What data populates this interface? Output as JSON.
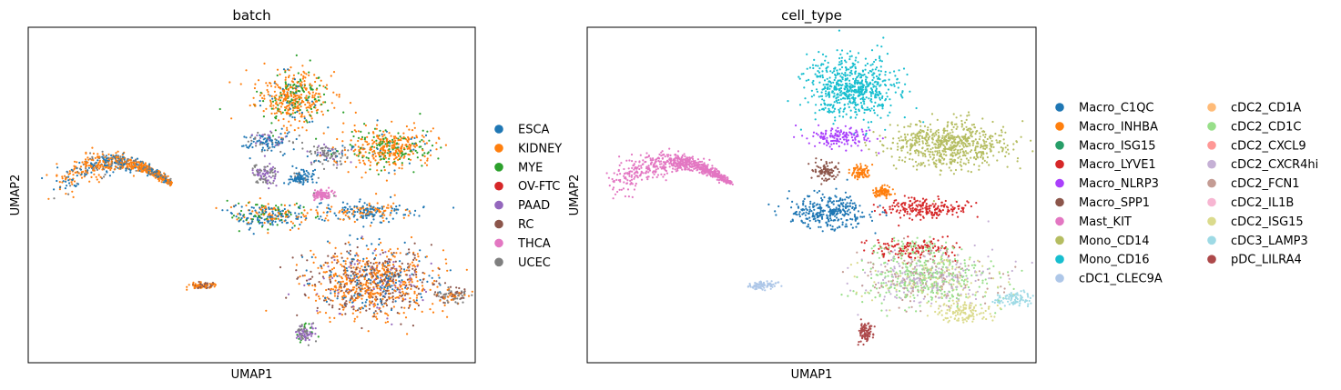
{
  "chart_data": [
    {
      "type": "scatter",
      "title": "batch",
      "xlabel": "UMAP1",
      "ylabel": "UMAP2",
      "xlim": [
        0,
        100
      ],
      "ylim": [
        0,
        100
      ],
      "grid": false,
      "legend_placement": "right",
      "series": [
        {
          "name": "ESCA",
          "color": "#1f77b4"
        },
        {
          "name": "KIDNEY",
          "color": "#ff7f0e"
        },
        {
          "name": "MYE",
          "color": "#2ca02c"
        },
        {
          "name": "OV-FTC",
          "color": "#d62728"
        },
        {
          "name": "PAAD",
          "color": "#9467bd"
        },
        {
          "name": "RC",
          "color": "#8c564b"
        },
        {
          "name": "THCA",
          "color": "#e377c2"
        },
        {
          "name": "UCEC",
          "color": "#7f7f7f"
        }
      ],
      "clusters": [
        {
          "x": 59,
          "y": 79,
          "rx": 8,
          "ry": 8,
          "mix": [
            [
              1,
              0.65
            ],
            [
              2,
              0.25
            ],
            [
              0,
              0.1
            ]
          ]
        },
        {
          "x": 53,
          "y": 66,
          "rx": 6,
          "ry": 3,
          "mix": [
            [
              0,
              0.6
            ],
            [
              7,
              0.25
            ],
            [
              4,
              0.15
            ]
          ]
        },
        {
          "x": 67,
          "y": 62,
          "rx": 5,
          "ry": 3,
          "mix": [
            [
              7,
              0.7
            ],
            [
              0,
              0.15
            ],
            [
              4,
              0.15
            ]
          ]
        },
        {
          "x": 81,
          "y": 64,
          "rx": 10,
          "ry": 6,
          "mix": [
            [
              1,
              0.65
            ],
            [
              2,
              0.3
            ],
            [
              0,
              0.05
            ]
          ]
        },
        {
          "x": 53,
          "y": 56,
          "rx": 3,
          "ry": 3,
          "mix": [
            [
              4,
              0.6
            ],
            [
              7,
              0.4
            ]
          ]
        },
        {
          "x": 61,
          "y": 55,
          "rx": 2.5,
          "ry": 2.5,
          "mix": [
            [
              0,
              0.9
            ],
            [
              7,
              0.1
            ]
          ]
        },
        {
          "x": 66,
          "y": 50,
          "rx": 2.5,
          "ry": 1.5,
          "mix": [
            [
              6,
              0.9
            ],
            [
              7,
              0.1
            ]
          ]
        },
        {
          "x": 54,
          "y": 44,
          "rx": 9,
          "ry": 4,
          "mix": [
            [
              0,
              0.5
            ],
            [
              1,
              0.3
            ],
            [
              2,
              0.2
            ]
          ]
        },
        {
          "x": 76,
          "y": 45,
          "rx": 10,
          "ry": 3,
          "mix": [
            [
              0,
              0.5
            ],
            [
              1,
              0.5
            ]
          ]
        },
        {
          "x": 77,
          "y": 24,
          "rx": 14,
          "ry": 10,
          "mix": [
            [
              1,
              0.5
            ],
            [
              5,
              0.25
            ],
            [
              0,
              0.15
            ],
            [
              4,
              0.1
            ]
          ]
        },
        {
          "x": 95,
          "y": 20,
          "rx": 4,
          "ry": 2,
          "mix": [
            [
              7,
              0.5
            ],
            [
              5,
              0.3
            ],
            [
              1,
              0.2
            ]
          ]
        },
        {
          "x": 39,
          "y": 23,
          "rx": 3,
          "ry": 1.2,
          "mix": [
            [
              1,
              0.5
            ],
            [
              5,
              0.5
            ]
          ]
        },
        {
          "x": 62,
          "y": 9,
          "rx": 2,
          "ry": 3,
          "mix": [
            [
              4,
              0.5
            ],
            [
              7,
              0.3
            ],
            [
              2,
              0.2
            ]
          ]
        }
      ]
    },
    {
      "type": "scatter",
      "title": "cell_type",
      "xlabel": "UMAP1",
      "ylabel": "UMAP2",
      "xlim": [
        0,
        100
      ],
      "ylim": [
        0,
        100
      ],
      "grid": false,
      "legend_placement": "right",
      "series": [
        {
          "name": "Macro_C1QC",
          "color": "#1f77b4"
        },
        {
          "name": "Macro_INHBA",
          "color": "#ff7f0e"
        },
        {
          "name": "Macro_ISG15",
          "color": "#279e68"
        },
        {
          "name": "Macro_LYVE1",
          "color": "#d62728"
        },
        {
          "name": "Macro_NLRP3",
          "color": "#aa40fc"
        },
        {
          "name": "Macro_SPP1",
          "color": "#8c564b"
        },
        {
          "name": "Mast_KIT",
          "color": "#e377c2"
        },
        {
          "name": "Mono_CD14",
          "color": "#b5bd61"
        },
        {
          "name": "Mono_CD16",
          "color": "#17becf"
        },
        {
          "name": "cDC1_CLEC9A",
          "color": "#aec7e8"
        },
        {
          "name": "cDC2_CD1A",
          "color": "#ffbb78"
        },
        {
          "name": "cDC2_CD1C",
          "color": "#98df8a"
        },
        {
          "name": "cDC2_CXCL9",
          "color": "#ff9896"
        },
        {
          "name": "cDC2_CXCR4hi",
          "color": "#c5b0d5"
        },
        {
          "name": "cDC2_FCN1",
          "color": "#c49c94"
        },
        {
          "name": "cDC2_IL1B",
          "color": "#f7b6d2"
        },
        {
          "name": "cDC2_ISG15",
          "color": "#dbdb8d"
        },
        {
          "name": "cDC3_LAMP3",
          "color": "#9edae5"
        },
        {
          "name": "pDC_LILRA4",
          "color": "#ad494a"
        }
      ],
      "clusters": [
        {
          "x": 59,
          "y": 82,
          "rx": 10,
          "ry": 9,
          "mix": [
            [
              8,
              1
            ]
          ]
        },
        {
          "x": 56,
          "y": 67,
          "rx": 7,
          "ry": 3,
          "mix": [
            [
              4,
              1
            ]
          ]
        },
        {
          "x": 81,
          "y": 65,
          "rx": 13,
          "ry": 7,
          "mix": [
            [
              7,
              1
            ]
          ]
        },
        {
          "x": 53,
          "y": 57,
          "rx": 3,
          "ry": 2.5,
          "mix": [
            [
              5,
              1
            ]
          ]
        },
        {
          "x": 61,
          "y": 57,
          "rx": 2,
          "ry": 2,
          "mix": [
            [
              1,
              1
            ]
          ]
        },
        {
          "x": 66,
          "y": 51,
          "rx": 2,
          "ry": 1.5,
          "mix": [
            [
              1,
              1
            ]
          ]
        },
        {
          "x": 54,
          "y": 45,
          "rx": 9,
          "ry": 5,
          "mix": [
            [
              0,
              1
            ]
          ]
        },
        {
          "x": 75,
          "y": 46,
          "rx": 10,
          "ry": 3,
          "mix": [
            [
              3,
              1
            ]
          ]
        },
        {
          "x": 73,
          "y": 34,
          "rx": 10,
          "ry": 3,
          "mix": [
            [
              3,
              0.6
            ],
            [
              11,
              0.4
            ]
          ]
        },
        {
          "x": 76,
          "y": 25,
          "rx": 14,
          "ry": 8,
          "mix": [
            [
              11,
              0.4
            ],
            [
              13,
              0.25
            ],
            [
              14,
              0.2
            ],
            [
              16,
              0.15
            ]
          ]
        },
        {
          "x": 84,
          "y": 15,
          "rx": 6,
          "ry": 3,
          "mix": [
            [
              16,
              1
            ]
          ]
        },
        {
          "x": 95,
          "y": 19,
          "rx": 4,
          "ry": 2,
          "mix": [
            [
              17,
              1
            ]
          ]
        },
        {
          "x": 39,
          "y": 23,
          "rx": 3,
          "ry": 1.2,
          "mix": [
            [
              9,
              1
            ]
          ]
        },
        {
          "x": 62,
          "y": 9,
          "rx": 2,
          "ry": 3,
          "mix": [
            [
              18,
              1
            ]
          ]
        }
      ]
    }
  ]
}
